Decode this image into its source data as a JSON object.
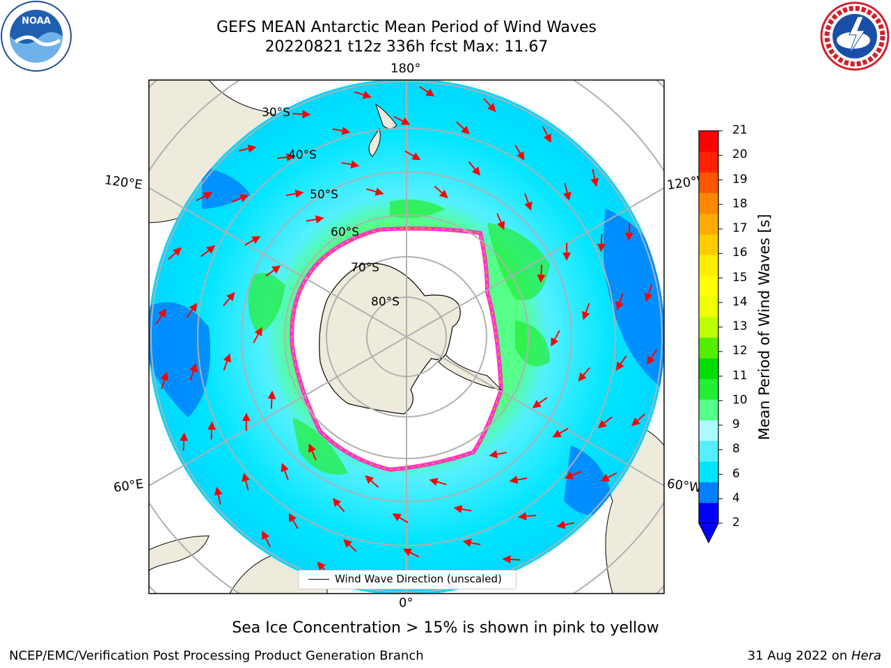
{
  "title": {
    "line1": "GEFS MEAN Antarctic Mean Period of Wind Waves",
    "line2": "20220821 t12z 336h fcst   Max: 11.67"
  },
  "logos": {
    "left": "noaa-logo",
    "right": "nws-logo"
  },
  "map": {
    "projection": "south-polar-stereographic",
    "longitude_labels": [
      "180°",
      "120°E",
      "120°W",
      "60°E",
      "60°W",
      "0°"
    ],
    "latitude_labels": [
      "30°S",
      "40°S",
      "50°S",
      "60°S",
      "70°S",
      "80°S"
    ],
    "legend": "Wind Wave Direction (unscaled)",
    "arrow_color": "#ff0000",
    "land_color": "#efebdc",
    "sea_ice_colors": [
      "#ff33cc",
      "#ffaa00"
    ]
  },
  "colorbar": {
    "label": "Mean Period of Wind Waves [s]",
    "ticks": [
      "21",
      "20",
      "19",
      "18",
      "17",
      "16",
      "15",
      "14",
      "13",
      "12",
      "11",
      "10",
      "9",
      "8",
      "6",
      "4",
      "2"
    ],
    "colors": [
      "#0000ff",
      "#0080ff",
      "#00e5ff",
      "#55f0ff",
      "#aafaff",
      "#55ff88",
      "#22ee33",
      "#00dd00",
      "#55ee00",
      "#bbff00",
      "#eeff00",
      "#ffff00",
      "#ffee00",
      "#ffcc00",
      "#ffaa00",
      "#ff8800",
      "#ff5500",
      "#ff2200",
      "#ff0000"
    ],
    "extend": "min"
  },
  "note": "Sea Ice Concentration > 15% is shown in pink to yellow",
  "footer": {
    "left": "NCEP/EMC/Verification Post Processing Product Generation Branch",
    "right_date": "31 Aug 2022 on ",
    "right_host": "Hera"
  }
}
